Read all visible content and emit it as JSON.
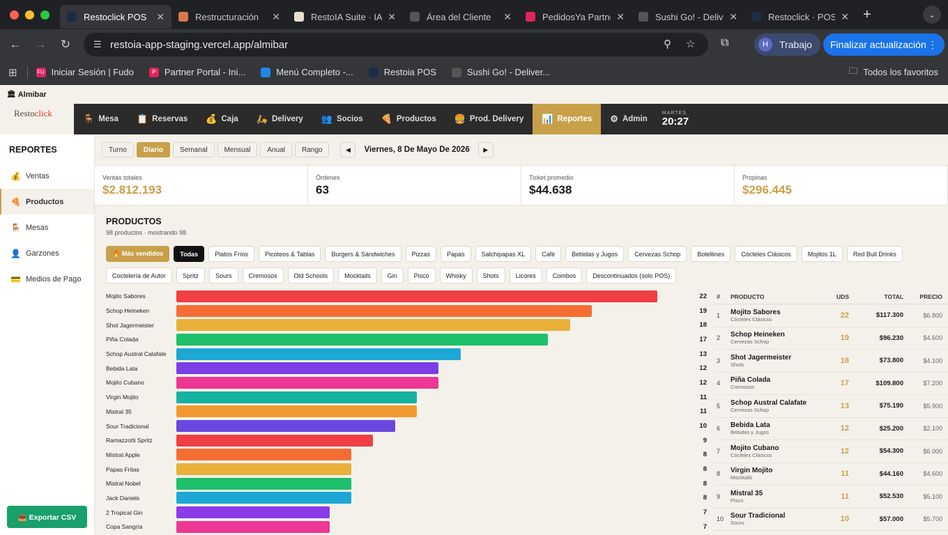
{
  "browser": {
    "tabs": [
      {
        "title": "Restoclick POS",
        "active": true,
        "fav_color": "#1f2a44"
      },
      {
        "title": "Restructuración",
        "active": false,
        "fav_color": "#d9774b"
      },
      {
        "title": "RestoIA Suite · IA",
        "active": false,
        "fav_color": "#e8e0d0"
      },
      {
        "title": "Área del Cliente",
        "active": false,
        "fav_color": "#555555"
      },
      {
        "title": "PedidosYa Partner",
        "active": false,
        "fav_color": "#e0245e"
      },
      {
        "title": "Sushi Go! - Deliv",
        "active": false,
        "fav_color": "#555555"
      },
      {
        "title": "Restoclick · POS",
        "active": false,
        "fav_color": "#1f2a44"
      }
    ],
    "url": "restoia-app-staging.vercel.app/almibar",
    "profile_initial": "H",
    "profile_label": "Trabajo",
    "update_label": "Finalizar actualización",
    "bookmarks": [
      {
        "label": "Iniciar Sesión | Fudo",
        "fav_color": "#e0245e",
        "fav_text": "FU"
      },
      {
        "label": "Partner Portal - Ini...",
        "fav_color": "#e0245e",
        "fav_text": "P"
      },
      {
        "label": "Menú Completo -...",
        "fav_color": "#1e88e5",
        "fav_text": ""
      },
      {
        "label": "Restoia POS",
        "fav_color": "#1f2a44",
        "fav_text": ""
      },
      {
        "label": "Sushi Go! - Deliver...",
        "fav_color": "#555555",
        "fav_text": ""
      }
    ],
    "all_bookmarks": "Todos los favoritos"
  },
  "page_title": "Almibar",
  "app": {
    "logo_a": "Resto",
    "logo_b": "click",
    "nav": [
      {
        "label": "Mesa",
        "icon": "chair-icon",
        "glyph": "🪑",
        "active": false
      },
      {
        "label": "Reservas",
        "icon": "clipboard-icon",
        "glyph": "📋",
        "active": false
      },
      {
        "label": "Caja",
        "icon": "money-bag-icon",
        "glyph": "💰",
        "active": false
      },
      {
        "label": "Delivery",
        "icon": "scooter-icon",
        "glyph": "🛵",
        "active": false
      },
      {
        "label": "Socios",
        "icon": "people-icon",
        "glyph": "👥",
        "active": false
      },
      {
        "label": "Productos",
        "icon": "pizza-icon",
        "glyph": "🍕",
        "active": false
      },
      {
        "label": "Prod. Delivery",
        "icon": "burger-icon",
        "glyph": "🍔",
        "active": false
      },
      {
        "label": "Reportes",
        "icon": "chart-icon",
        "glyph": "📊",
        "active": true
      },
      {
        "label": "Admin",
        "icon": "gear-icon",
        "glyph": "⚙",
        "active": false
      }
    ],
    "clock_day": "MARTES",
    "clock_time": "20:27"
  },
  "sidebar": {
    "title": "REPORTES",
    "items": [
      {
        "label": "Ventas",
        "icon": "money-bag-icon",
        "glyph": "💰",
        "active": false
      },
      {
        "label": "Productos",
        "icon": "pizza-icon",
        "glyph": "🍕",
        "active": true
      },
      {
        "label": "Mesas",
        "icon": "chair-icon",
        "glyph": "🪑",
        "active": false
      },
      {
        "label": "Garzones",
        "icon": "person-icon",
        "glyph": "👤",
        "active": false
      },
      {
        "label": "Medios de Pago",
        "icon": "card-icon",
        "glyph": "💳",
        "active": false
      }
    ],
    "export_label": "📤 Exportar CSV"
  },
  "periods": [
    {
      "label": "Turno",
      "active": false
    },
    {
      "label": "Diario",
      "active": true
    },
    {
      "label": "Semanal",
      "active": false
    },
    {
      "label": "Mensual",
      "active": false
    },
    {
      "label": "Anual",
      "active": false
    },
    {
      "label": "Rango",
      "active": false
    }
  ],
  "date_label": "Viernes, 8 De Mayo De 2026",
  "kpis": [
    {
      "label": "Ventas totales",
      "value": "$2.812.193",
      "gold": true
    },
    {
      "label": "Órdenes",
      "value": "63",
      "gold": false
    },
    {
      "label": "Ticket promedio",
      "value": "$44.638",
      "gold": false
    },
    {
      "label": "Propinas",
      "value": "$296.445",
      "gold": true
    }
  ],
  "section": {
    "title": "PRODUCTOS",
    "subtitle": "98 productos · mostrando 98"
  },
  "chips": [
    {
      "label": "🔥 Más vendidos",
      "style": "gold"
    },
    {
      "label": "Todas",
      "style": "dark"
    },
    {
      "label": "Platos Fríos",
      "style": ""
    },
    {
      "label": "Picoteos & Tablas",
      "style": ""
    },
    {
      "label": "Burgers & Sándwiches",
      "style": ""
    },
    {
      "label": "Pizzas",
      "style": ""
    },
    {
      "label": "Papas",
      "style": ""
    },
    {
      "label": "Salchipapas XL",
      "style": ""
    },
    {
      "label": "Café",
      "style": ""
    },
    {
      "label": "Bebidas y Jugos",
      "style": ""
    },
    {
      "label": "Cervezas Schop",
      "style": ""
    },
    {
      "label": "Botellines",
      "style": ""
    },
    {
      "label": "Cócteles Clásicos",
      "style": ""
    },
    {
      "label": "Mojitos 1L",
      "style": ""
    },
    {
      "label": "Red Bull Drinks",
      "style": ""
    },
    {
      "label": "Coctelería de Autor",
      "style": ""
    },
    {
      "label": "Spritz",
      "style": ""
    },
    {
      "label": "Sours",
      "style": ""
    },
    {
      "label": "Cremosos",
      "style": ""
    },
    {
      "label": "Old Schools",
      "style": ""
    },
    {
      "label": "Mocktails",
      "style": ""
    },
    {
      "label": "Gin",
      "style": ""
    },
    {
      "label": "Pisco",
      "style": ""
    },
    {
      "label": "Whisky",
      "style": ""
    },
    {
      "label": "Shots",
      "style": ""
    },
    {
      "label": "Licores",
      "style": ""
    },
    {
      "label": "Combos",
      "style": ""
    },
    {
      "label": "Descontinuados (solo POS)",
      "style": ""
    }
  ],
  "chart_data": {
    "type": "bar",
    "orientation": "horizontal",
    "categories": [
      "Mojito Sabores",
      "Schop Heineken",
      "Shot Jagermeister",
      "Piña Colada",
      "Schop Austral Calafate",
      "Bebida Lata",
      "Mojito Cubano",
      "Virgin Mojito",
      "Mistral 35",
      "Sour Tradicional",
      "Ramazzotti Spritz",
      "Mistral Apple",
      "Papas Fritas",
      "Mistral Nobel",
      "Jack Daniels",
      "2 Tropical Gin",
      "Copa Sangría"
    ],
    "values": [
      22,
      19,
      18,
      17,
      13,
      12,
      12,
      11,
      11,
      10,
      9,
      8,
      8,
      8,
      8,
      7,
      7
    ],
    "colors": [
      "#ef3e45",
      "#f46d33",
      "#e9b13a",
      "#1ec06b",
      "#1ba8d4",
      "#7b3ee6",
      "#ec3794",
      "#16b3a0",
      "#f09a2f",
      "#6a48e0",
      "#ef3e45",
      "#f46d33",
      "#e9b13a",
      "#1ec06b",
      "#1ba8d4",
      "#8a3be8",
      "#ec3794"
    ],
    "xlim": [
      0,
      22
    ]
  },
  "table": {
    "headers": [
      "#",
      "PRODUCTO",
      "UDS",
      "TOTAL",
      "PRECIO"
    ],
    "rows": [
      {
        "n": "1",
        "name": "Mojito Sabores",
        "cat": "Cócteles Clásicos",
        "uds": "22",
        "total": "$117.300",
        "price": "$6.800"
      },
      {
        "n": "2",
        "name": "Schop Heineken",
        "cat": "Cervezas Schop",
        "uds": "19",
        "total": "$96.230",
        "price": "$4.600"
      },
      {
        "n": "3",
        "name": "Shot Jagermeister",
        "cat": "Shots",
        "uds": "18",
        "total": "$73.800",
        "price": "$4.100"
      },
      {
        "n": "4",
        "name": "Piña Colada",
        "cat": "Cremosos",
        "uds": "17",
        "total": "$109.800",
        "price": "$7.200"
      },
      {
        "n": "5",
        "name": "Schop Austral Calafate",
        "cat": "Cervezas Schop",
        "uds": "13",
        "total": "$75.190",
        "price": "$5.900"
      },
      {
        "n": "6",
        "name": "Bebida Lata",
        "cat": "Bebidas y Jugos",
        "uds": "12",
        "total": "$25.200",
        "price": "$2.100"
      },
      {
        "n": "7",
        "name": "Mojito Cubano",
        "cat": "Cócteles Clásicos",
        "uds": "12",
        "total": "$54.300",
        "price": "$6.000"
      },
      {
        "n": "8",
        "name": "Virgin Mojito",
        "cat": "Mocktails",
        "uds": "11",
        "total": "$44.160",
        "price": "$4.600"
      },
      {
        "n": "9",
        "name": "Mistral 35",
        "cat": "Pisco",
        "uds": "11",
        "total": "$52.530",
        "price": "$5.100"
      },
      {
        "n": "10",
        "name": "Sour Tradicional",
        "cat": "Sours",
        "uds": "10",
        "total": "$57.000",
        "price": "$5.700"
      }
    ]
  }
}
